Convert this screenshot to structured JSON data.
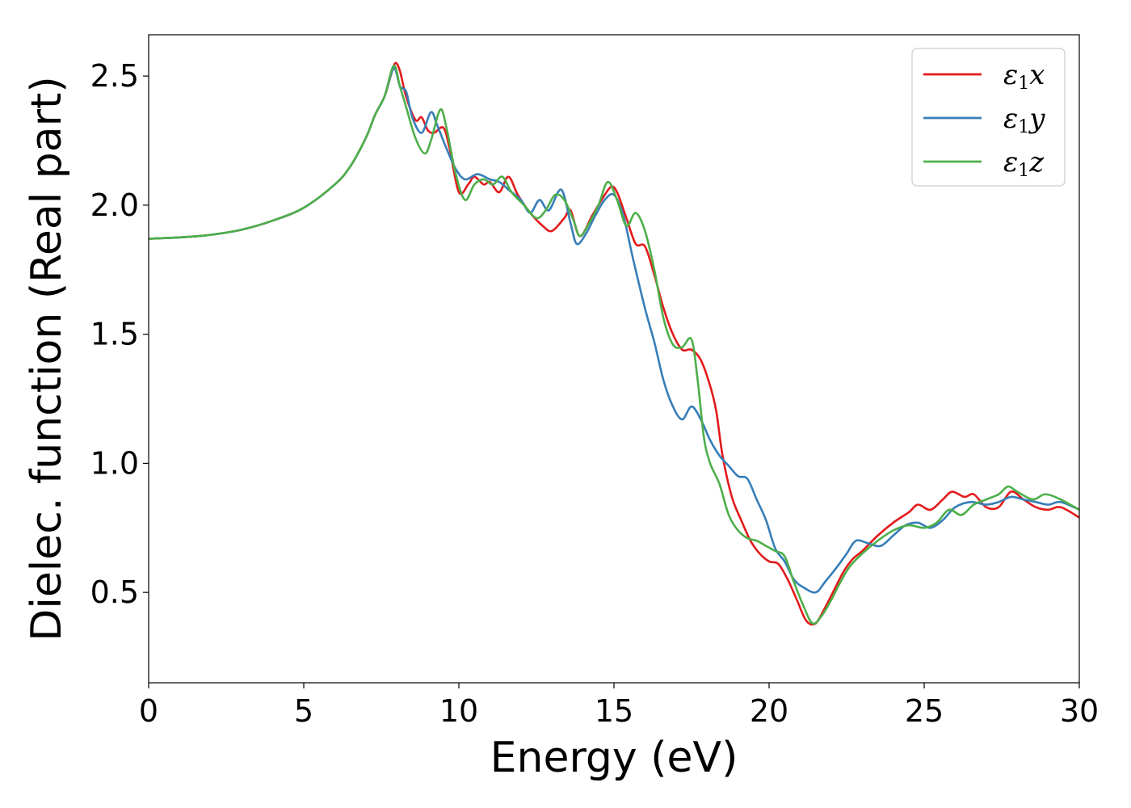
{
  "chart_data": {
    "type": "line",
    "title": "",
    "xlabel": "Energy (eV)",
    "ylabel": "Dielec. function (Real part)",
    "xlim": [
      0,
      30
    ],
    "ylim": [
      0.15,
      2.66
    ],
    "xticks": [
      0,
      5,
      10,
      15,
      20,
      25,
      30
    ],
    "yticks": [
      0.5,
      1.0,
      1.5,
      2.0,
      2.5
    ],
    "xtick_labels": [
      "0",
      "5",
      "10",
      "15",
      "20",
      "25",
      "30"
    ],
    "ytick_labels": [
      "0.5",
      "1.0",
      "1.5",
      "2.0",
      "2.5"
    ],
    "grid": false,
    "legend_position": "top-right",
    "series": [
      {
        "name": "ε1x",
        "base": "ε",
        "sub": "1",
        "tail": "x",
        "color": "#e31a1c",
        "points": [
          [
            0,
            1.87
          ],
          [
            1,
            1.875
          ],
          [
            2,
            1.885
          ],
          [
            3,
            1.905
          ],
          [
            4,
            1.94
          ],
          [
            5,
            1.99
          ],
          [
            6,
            2.08
          ],
          [
            6.5,
            2.15
          ],
          [
            7,
            2.26
          ],
          [
            7.3,
            2.35
          ],
          [
            7.6,
            2.42
          ],
          [
            7.8,
            2.5
          ],
          [
            7.95,
            2.55
          ],
          [
            8.1,
            2.52
          ],
          [
            8.3,
            2.42
          ],
          [
            8.6,
            2.33
          ],
          [
            8.8,
            2.34
          ],
          [
            9.0,
            2.29
          ],
          [
            9.2,
            2.28
          ],
          [
            9.5,
            2.3
          ],
          [
            9.7,
            2.22
          ],
          [
            10.0,
            2.05
          ],
          [
            10.3,
            2.08
          ],
          [
            10.5,
            2.11
          ],
          [
            10.8,
            2.08
          ],
          [
            11.0,
            2.09
          ],
          [
            11.3,
            2.05
          ],
          [
            11.6,
            2.11
          ],
          [
            11.9,
            2.04
          ],
          [
            12.3,
            1.97
          ],
          [
            12.7,
            1.92
          ],
          [
            13.0,
            1.9
          ],
          [
            13.4,
            1.95
          ],
          [
            13.6,
            1.98
          ],
          [
            13.9,
            1.88
          ],
          [
            14.3,
            1.96
          ],
          [
            14.6,
            2.02
          ],
          [
            14.9,
            2.07
          ],
          [
            15.1,
            2.05
          ],
          [
            15.4,
            1.95
          ],
          [
            15.7,
            1.85
          ],
          [
            16.0,
            1.84
          ],
          [
            16.3,
            1.73
          ],
          [
            16.6,
            1.6
          ],
          [
            16.9,
            1.5
          ],
          [
            17.2,
            1.44
          ],
          [
            17.5,
            1.44
          ],
          [
            17.8,
            1.4
          ],
          [
            18.1,
            1.3
          ],
          [
            18.3,
            1.2
          ],
          [
            18.5,
            1.03
          ],
          [
            18.8,
            0.87
          ],
          [
            19.1,
            0.78
          ],
          [
            19.4,
            0.7
          ],
          [
            19.7,
            0.65
          ],
          [
            20.0,
            0.62
          ],
          [
            20.3,
            0.61
          ],
          [
            20.6,
            0.55
          ],
          [
            20.9,
            0.47
          ],
          [
            21.2,
            0.39
          ],
          [
            21.5,
            0.38
          ],
          [
            21.8,
            0.44
          ],
          [
            22.1,
            0.51
          ],
          [
            22.4,
            0.58
          ],
          [
            22.7,
            0.63
          ],
          [
            23.0,
            0.66
          ],
          [
            23.5,
            0.72
          ],
          [
            24.0,
            0.77
          ],
          [
            24.5,
            0.81
          ],
          [
            24.8,
            0.84
          ],
          [
            25.2,
            0.82
          ],
          [
            25.6,
            0.86
          ],
          [
            25.9,
            0.89
          ],
          [
            26.3,
            0.87
          ],
          [
            26.6,
            0.88
          ],
          [
            27.0,
            0.83
          ],
          [
            27.4,
            0.83
          ],
          [
            27.8,
            0.89
          ],
          [
            28.2,
            0.86
          ],
          [
            28.6,
            0.83
          ],
          [
            29.0,
            0.82
          ],
          [
            29.4,
            0.83
          ],
          [
            30.0,
            0.79
          ]
        ]
      },
      {
        "name": "ε1y",
        "base": "ε",
        "sub": "1",
        "tail": "y",
        "color": "#377eb8",
        "points": [
          [
            0,
            1.87
          ],
          [
            1,
            1.875
          ],
          [
            2,
            1.885
          ],
          [
            3,
            1.905
          ],
          [
            4,
            1.94
          ],
          [
            5,
            1.99
          ],
          [
            6,
            2.08
          ],
          [
            6.5,
            2.15
          ],
          [
            7,
            2.26
          ],
          [
            7.3,
            2.35
          ],
          [
            7.6,
            2.42
          ],
          [
            7.9,
            2.53
          ],
          [
            8.1,
            2.46
          ],
          [
            8.3,
            2.44
          ],
          [
            8.5,
            2.34
          ],
          [
            8.8,
            2.28
          ],
          [
            9.1,
            2.36
          ],
          [
            9.3,
            2.31
          ],
          [
            9.6,
            2.22
          ],
          [
            9.9,
            2.14
          ],
          [
            10.2,
            2.1
          ],
          [
            10.6,
            2.12
          ],
          [
            11.0,
            2.1
          ],
          [
            11.3,
            2.09
          ],
          [
            11.6,
            2.06
          ],
          [
            12.0,
            2.02
          ],
          [
            12.3,
            1.97
          ],
          [
            12.6,
            2.02
          ],
          [
            12.9,
            1.98
          ],
          [
            13.3,
            2.06
          ],
          [
            13.6,
            1.93
          ],
          [
            13.8,
            1.85
          ],
          [
            14.1,
            1.89
          ],
          [
            14.4,
            1.96
          ],
          [
            14.7,
            2.02
          ],
          [
            15.0,
            2.04
          ],
          [
            15.3,
            1.96
          ],
          [
            15.6,
            1.8
          ],
          [
            16.0,
            1.6
          ],
          [
            16.3,
            1.47
          ],
          [
            16.6,
            1.32
          ],
          [
            16.9,
            1.22
          ],
          [
            17.2,
            1.17
          ],
          [
            17.5,
            1.22
          ],
          [
            17.8,
            1.17
          ],
          [
            18.1,
            1.09
          ],
          [
            18.4,
            1.03
          ],
          [
            18.7,
            0.99
          ],
          [
            19.0,
            0.95
          ],
          [
            19.3,
            0.94
          ],
          [
            19.6,
            0.86
          ],
          [
            19.9,
            0.78
          ],
          [
            20.2,
            0.67
          ],
          [
            20.5,
            0.62
          ],
          [
            20.8,
            0.55
          ],
          [
            21.1,
            0.52
          ],
          [
            21.5,
            0.5
          ],
          [
            21.8,
            0.54
          ],
          [
            22.2,
            0.6
          ],
          [
            22.5,
            0.65
          ],
          [
            22.8,
            0.7
          ],
          [
            23.2,
            0.69
          ],
          [
            23.6,
            0.68
          ],
          [
            24.0,
            0.72
          ],
          [
            24.4,
            0.76
          ],
          [
            24.8,
            0.77
          ],
          [
            25.2,
            0.75
          ],
          [
            25.6,
            0.78
          ],
          [
            26.0,
            0.83
          ],
          [
            26.5,
            0.85
          ],
          [
            27.0,
            0.84
          ],
          [
            27.4,
            0.85
          ],
          [
            27.8,
            0.87
          ],
          [
            28.2,
            0.86
          ],
          [
            28.6,
            0.85
          ],
          [
            29.0,
            0.84
          ],
          [
            29.4,
            0.85
          ],
          [
            30.0,
            0.82
          ]
        ]
      },
      {
        "name": "ε1z",
        "base": "ε",
        "sub": "1",
        "tail": "z",
        "color": "#4daf4a",
        "points": [
          [
            0,
            1.87
          ],
          [
            1,
            1.875
          ],
          [
            2,
            1.885
          ],
          [
            3,
            1.905
          ],
          [
            4,
            1.94
          ],
          [
            5,
            1.99
          ],
          [
            6,
            2.08
          ],
          [
            6.5,
            2.15
          ],
          [
            7,
            2.26
          ],
          [
            7.3,
            2.35
          ],
          [
            7.6,
            2.42
          ],
          [
            7.9,
            2.54
          ],
          [
            8.1,
            2.46
          ],
          [
            8.3,
            2.38
          ],
          [
            8.6,
            2.26
          ],
          [
            8.9,
            2.2
          ],
          [
            9.1,
            2.25
          ],
          [
            9.4,
            2.37
          ],
          [
            9.6,
            2.3
          ],
          [
            9.9,
            2.12
          ],
          [
            10.2,
            2.02
          ],
          [
            10.5,
            2.08
          ],
          [
            10.8,
            2.1
          ],
          [
            11.1,
            2.08
          ],
          [
            11.4,
            2.11
          ],
          [
            11.7,
            2.05
          ],
          [
            12.1,
            2.0
          ],
          [
            12.5,
            1.95
          ],
          [
            12.8,
            1.98
          ],
          [
            13.1,
            2.04
          ],
          [
            13.4,
            2.02
          ],
          [
            13.7,
            1.94
          ],
          [
            13.9,
            1.88
          ],
          [
            14.2,
            1.93
          ],
          [
            14.5,
            2.0
          ],
          [
            14.8,
            2.09
          ],
          [
            15.1,
            2.02
          ],
          [
            15.4,
            1.92
          ],
          [
            15.7,
            1.97
          ],
          [
            16.0,
            1.9
          ],
          [
            16.3,
            1.75
          ],
          [
            16.6,
            1.56
          ],
          [
            16.9,
            1.46
          ],
          [
            17.2,
            1.45
          ],
          [
            17.5,
            1.48
          ],
          [
            17.7,
            1.32
          ],
          [
            17.9,
            1.1
          ],
          [
            18.1,
            1.0
          ],
          [
            18.4,
            0.92
          ],
          [
            18.7,
            0.8
          ],
          [
            19.0,
            0.74
          ],
          [
            19.3,
            0.71
          ],
          [
            19.6,
            0.7
          ],
          [
            19.9,
            0.68
          ],
          [
            20.2,
            0.66
          ],
          [
            20.5,
            0.64
          ],
          [
            20.8,
            0.54
          ],
          [
            21.1,
            0.45
          ],
          [
            21.4,
            0.38
          ],
          [
            21.7,
            0.41
          ],
          [
            22.0,
            0.47
          ],
          [
            22.3,
            0.54
          ],
          [
            22.6,
            0.6
          ],
          [
            23.0,
            0.65
          ],
          [
            23.5,
            0.7
          ],
          [
            24.0,
            0.74
          ],
          [
            24.5,
            0.76
          ],
          [
            25.0,
            0.75
          ],
          [
            25.4,
            0.77
          ],
          [
            25.8,
            0.82
          ],
          [
            26.2,
            0.8
          ],
          [
            26.6,
            0.84
          ],
          [
            27.0,
            0.86
          ],
          [
            27.4,
            0.88
          ],
          [
            27.7,
            0.91
          ],
          [
            28.0,
            0.89
          ],
          [
            28.5,
            0.86
          ],
          [
            28.9,
            0.88
          ],
          [
            29.4,
            0.86
          ],
          [
            30.0,
            0.82
          ]
        ]
      }
    ]
  }
}
